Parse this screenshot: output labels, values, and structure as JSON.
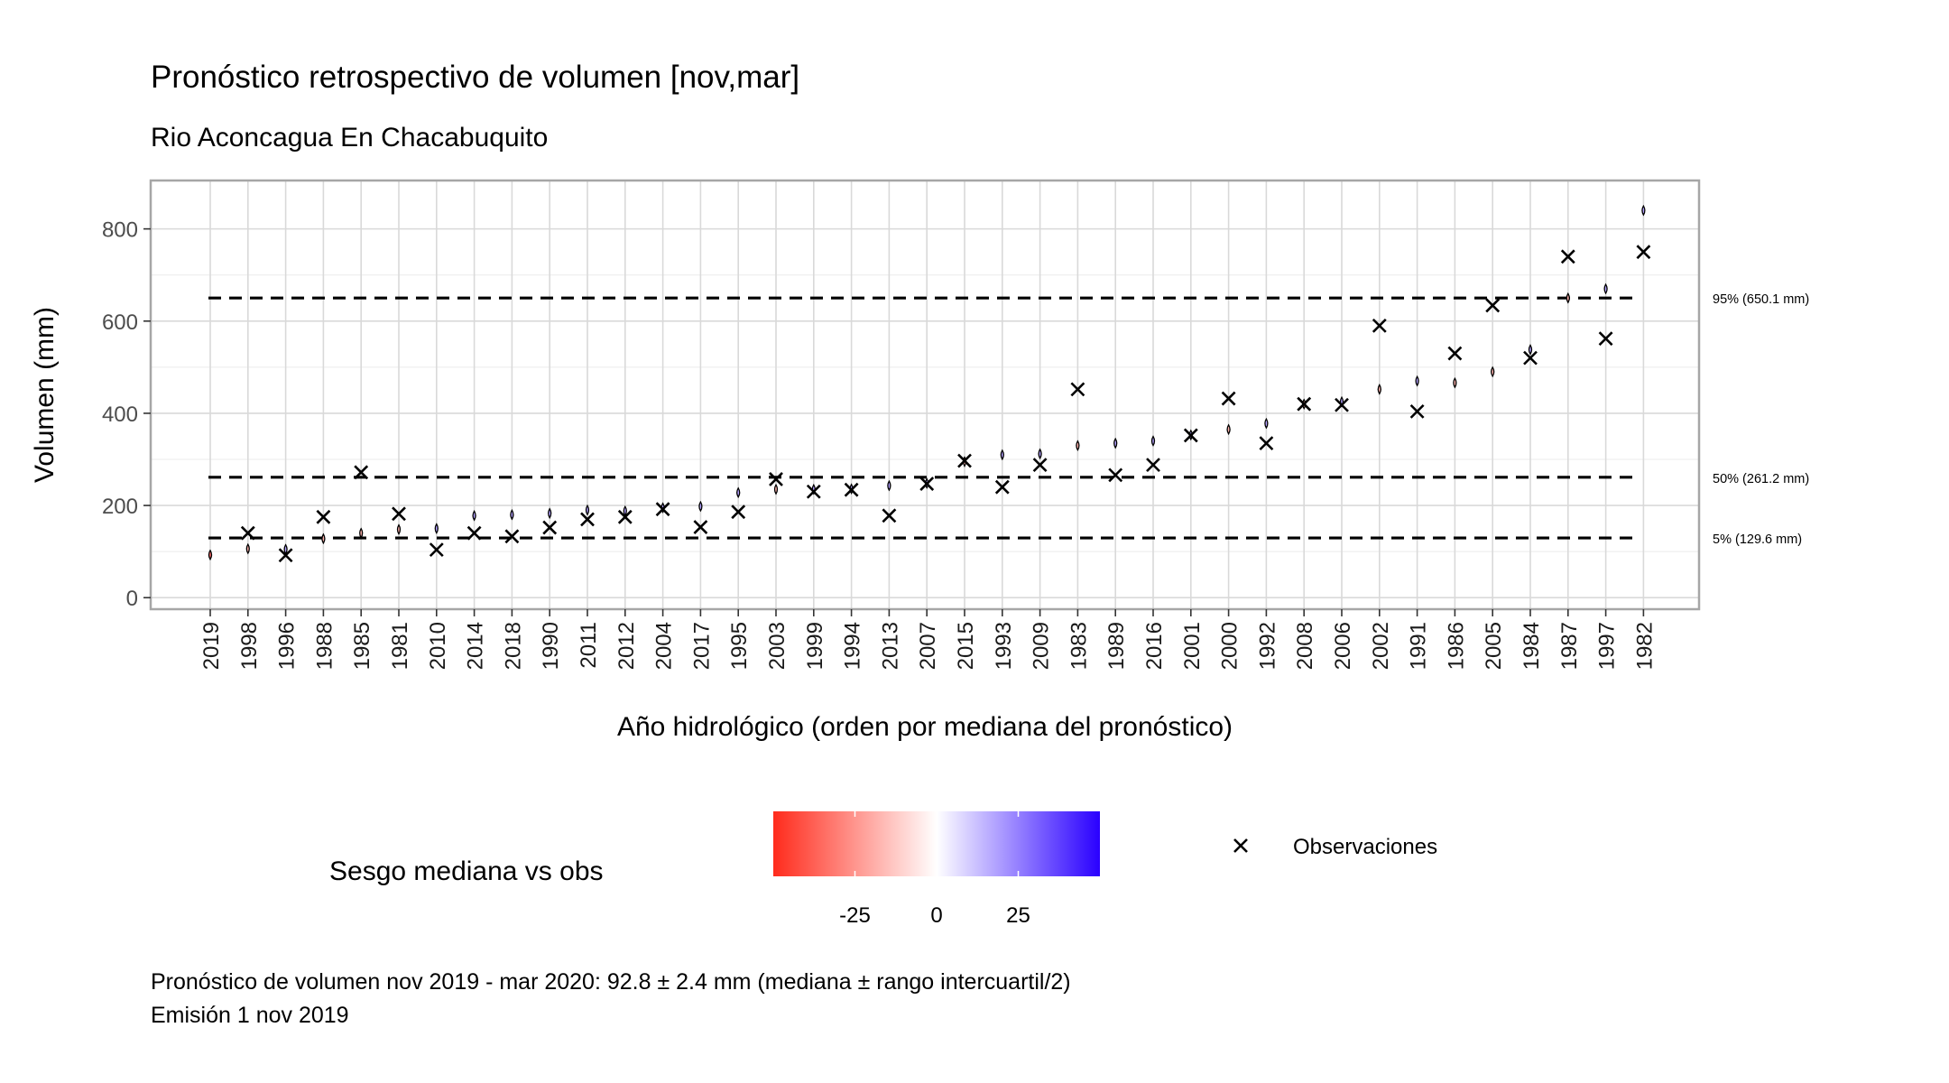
{
  "chart_data": {
    "type": "scatter",
    "title": "Pronóstico retrospectivo de volumen [nov,mar]",
    "subtitle": "Rio Aconcagua En Chacabuquito",
    "xlabel": "Año hidrológico (orden por mediana del pronóstico)",
    "ylabel": "Volumen (mm)",
    "ylim": [
      -25,
      905
    ],
    "yticks": [
      0,
      200,
      400,
      600,
      800
    ],
    "grid": true,
    "highlight_year": "2019",
    "highlight_color": "#ff0000",
    "categories": [
      "2019",
      "1998",
      "1996",
      "1988",
      "1985",
      "1981",
      "2010",
      "2014",
      "2018",
      "1990",
      "2011",
      "2012",
      "2004",
      "2017",
      "1995",
      "2003",
      "1999",
      "1994",
      "2013",
      "2007",
      "2015",
      "1993",
      "2009",
      "1983",
      "1989",
      "2016",
      "2001",
      "2000",
      "1992",
      "2008",
      "2006",
      "2002",
      "1991",
      "1986",
      "2005",
      "1984",
      "1987",
      "1997",
      "1982"
    ],
    "forecast_median": [
      92.8,
      106,
      105,
      128,
      140,
      148,
      150,
      178,
      180,
      183,
      190,
      188,
      195,
      198,
      228,
      235,
      235,
      236,
      243,
      248,
      295,
      310,
      312,
      330,
      335,
      340,
      353,
      365,
      378,
      420,
      425,
      452,
      470,
      466,
      490,
      538,
      650,
      670,
      840
    ],
    "observations": [
      null,
      140,
      92,
      175,
      272,
      182,
      104,
      140,
      133,
      152,
      170,
      175,
      192,
      153,
      186,
      257,
      230,
      234,
      178,
      247,
      297,
      240,
      288,
      452,
      266,
      288,
      352,
      432,
      335,
      420,
      418,
      590,
      404,
      530,
      634,
      520,
      740,
      562,
      750
    ],
    "quantiles": [
      {
        "label": "95% (650.1 mm)",
        "value": 650.1
      },
      {
        "label": "50% (261.2 mm)",
        "value": 261.2
      },
      {
        "label": "5% (129.6 mm)",
        "value": 129.6
      }
    ],
    "legend": {
      "color_title": "Sesgo mediana vs obs",
      "color_ticks": [
        "-25",
        "0",
        "25"
      ],
      "color_tick_values": [
        -25,
        0,
        25
      ],
      "color_range": [
        -50,
        50
      ],
      "colors": {
        "low": "#ff0000",
        "mid": "#ffffff",
        "high": "#0000ff"
      },
      "marker_label": "Observaciones"
    }
  },
  "caption": {
    "line1": "Pronóstico de volumen nov 2019 - mar 2020: 92.8 ± 2.4 mm (mediana ± rango intercuartil/2)",
    "line2": "Emisión 1 nov 2019"
  }
}
